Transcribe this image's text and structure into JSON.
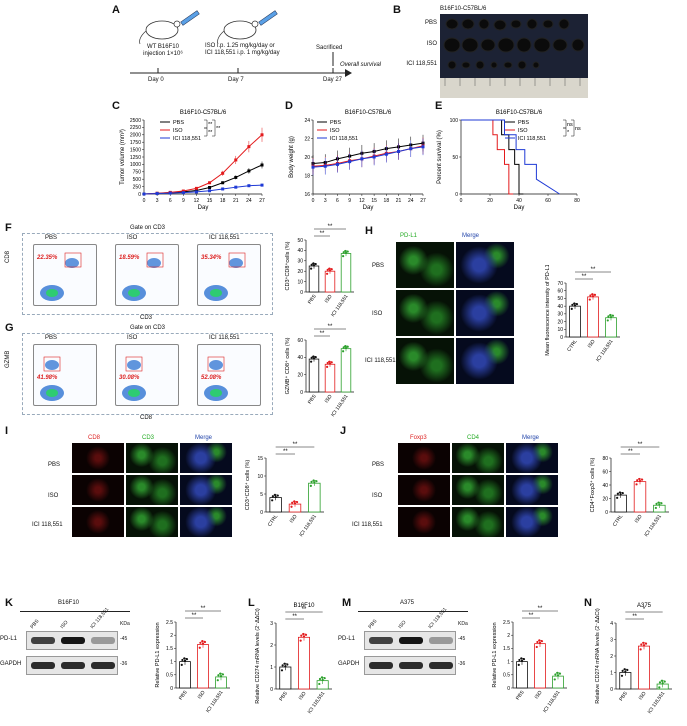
{
  "panels": {
    "A": "A",
    "B": "B",
    "C": "C",
    "D": "D",
    "E": "E",
    "F": "F",
    "G": "G",
    "H": "H",
    "I": "I",
    "J": "J",
    "K": "K",
    "L": "L",
    "M": "M",
    "N": "N"
  },
  "panelA": {
    "day0": "Day 0",
    "day7": "Day 7",
    "day27": "Day 27",
    "left_text_1": "WT B16F10",
    "left_text_2": "injection 1×10⁶",
    "mid_text_1": "ISO i.p. 1.25 mg/kg/day or",
    "mid_text_2": "ICI 118,551 i.p. 1 mg/kg/day",
    "sacrificed": "Sacrificed",
    "overall": "Overall survival"
  },
  "panelB": {
    "title": "B16F10-C57BL/6",
    "rows": [
      "PBS",
      "ISO",
      "ICI 118,551"
    ]
  },
  "chart_data": [
    {
      "id": "C",
      "type": "line",
      "title": "B16F10-C57BL/6",
      "xlabel": "Day",
      "ylabel": "Tumor volume (mm³)",
      "x": [
        0,
        3,
        6,
        9,
        12,
        15,
        18,
        21,
        24,
        27
      ],
      "ylim": [
        0,
        2500
      ],
      "yticks": [
        0,
        250,
        500,
        750,
        1000,
        1250,
        1500,
        1750,
        2000,
        2250,
        2500
      ],
      "series": [
        {
          "name": "PBS",
          "color": "#000000",
          "values": [
            0,
            20,
            45,
            70,
            120,
            220,
            380,
            560,
            780,
            980
          ]
        },
        {
          "name": "ISO",
          "color": "#e31a1c",
          "values": [
            0,
            25,
            55,
            100,
            190,
            380,
            700,
            1150,
            1600,
            2000
          ]
        },
        {
          "name": "ICI 118,551",
          "color": "#1f3ad6",
          "values": [
            0,
            15,
            30,
            45,
            70,
            110,
            170,
            230,
            280,
            300
          ]
        }
      ],
      "sig": [
        "**",
        "**",
        "**"
      ]
    },
    {
      "id": "D",
      "type": "line",
      "title": "B16F10-C57BL/6",
      "xlabel": "Day",
      "ylabel": "Body weight (g)",
      "x": [
        0,
        3,
        6,
        9,
        12,
        15,
        18,
        21,
        24,
        27
      ],
      "ylim": [
        16,
        24
      ],
      "yticks": [
        16,
        18,
        20,
        22,
        24
      ],
      "series": [
        {
          "name": "PBS",
          "color": "#000000",
          "values": [
            19.3,
            19.4,
            19.8,
            20.1,
            20.4,
            20.6,
            20.9,
            21.1,
            21.3,
            21.5
          ]
        },
        {
          "name": "ISO",
          "color": "#e31a1c",
          "values": [
            19.0,
            19.1,
            19.3,
            19.6,
            19.8,
            20.1,
            20.4,
            20.6,
            20.9,
            21.2
          ]
        },
        {
          "name": "ICI 118,551",
          "color": "#1f3ad6",
          "values": [
            18.9,
            19.0,
            19.2,
            19.5,
            19.8,
            20.0,
            20.3,
            20.6,
            20.9,
            21.1
          ]
        }
      ]
    },
    {
      "id": "E",
      "type": "line",
      "title": "B16F10-C57BL/6",
      "xlabel": "Day",
      "ylabel": "Percent survival (%)",
      "xlim": [
        0,
        80
      ],
      "xticks": [
        0,
        20,
        40,
        60,
        80
      ],
      "ylim": [
        0,
        100
      ],
      "yticks": [
        0,
        50,
        100
      ],
      "series": [
        {
          "name": "PBS",
          "color": "#000000",
          "x": [
            0,
            28,
            28,
            33,
            33,
            37,
            37,
            40,
            40,
            43
          ],
          "values": [
            100,
            100,
            80,
            80,
            60,
            60,
            40,
            40,
            0,
            0
          ]
        },
        {
          "name": "ISO",
          "color": "#e31a1c",
          "x": [
            0,
            22,
            22,
            25,
            25,
            30,
            30,
            33,
            33,
            36
          ],
          "values": [
            100,
            100,
            80,
            80,
            60,
            60,
            40,
            40,
            0,
            0
          ]
        },
        {
          "name": "ICI 118,551",
          "color": "#1f3ad6",
          "x": [
            0,
            30,
            30,
            38,
            38,
            44,
            44,
            52,
            52,
            68
          ],
          "values": [
            100,
            100,
            80,
            80,
            60,
            60,
            40,
            40,
            20,
            0
          ]
        }
      ],
      "sig": [
        "ns",
        "*",
        "ns"
      ]
    },
    {
      "id": "F",
      "type": "bar",
      "ylabel": "CD3⁺CD8⁺cells (%)",
      "categories": [
        "PBS",
        "ISO",
        "ICI 118,551"
      ],
      "values": [
        25,
        20,
        37
      ],
      "ylim": [
        0,
        50
      ],
      "yticks": [
        0,
        10,
        20,
        30,
        40,
        50
      ],
      "sig": [
        "**",
        "**"
      ]
    },
    {
      "id": "G",
      "type": "bar",
      "ylabel": "GZMB⁺ CD8⁺ cells (%)",
      "categories": [
        "PBS",
        "ISO",
        "ICI 118,551"
      ],
      "values": [
        38,
        32,
        50
      ],
      "ylim": [
        0,
        60
      ],
      "yticks": [
        0,
        20,
        40,
        60
      ],
      "sig": [
        "**",
        "**"
      ]
    },
    {
      "id": "H",
      "type": "bar",
      "ylabel": "Mean fluorescence intensity of PD-L1",
      "categories": [
        "CTRL",
        "ISO",
        "ICI 118,551"
      ],
      "values": [
        40,
        52,
        25
      ],
      "ylim": [
        0,
        70
      ],
      "yticks": [
        0,
        10,
        20,
        30,
        40,
        50,
        60,
        70
      ],
      "sig": [
        "**",
        "**"
      ]
    },
    {
      "id": "I",
      "type": "bar",
      "ylabel": "CD3⁺CD8⁺ cells (%)",
      "categories": [
        "CTRL",
        "ISO",
        "ICI 118,551"
      ],
      "values": [
        4,
        2.2,
        8
      ],
      "ylim": [
        0,
        15
      ],
      "yticks": [
        0,
        5,
        10,
        15
      ],
      "sig": [
        "**",
        "**"
      ]
    },
    {
      "id": "J",
      "type": "bar",
      "ylabel": "CD4⁺Foxp3⁺ cells (%)",
      "categories": [
        "CTRL",
        "ISO",
        "ICI 118,551"
      ],
      "values": [
        25,
        45,
        10
      ],
      "ylim": [
        0,
        80
      ],
      "yticks": [
        0,
        20,
        40,
        60,
        80
      ],
      "sig": [
        "**",
        "**"
      ]
    },
    {
      "id": "K",
      "type": "bar",
      "ylabel": "Relative PD-L1 expression",
      "categories": [
        "PBS",
        "ISO",
        "ICI 118,551"
      ],
      "values": [
        1.0,
        1.65,
        0.42
      ],
      "ylim": [
        0,
        2.5
      ],
      "yticks": [
        0,
        0.5,
        1.0,
        1.5,
        2.0,
        2.5
      ],
      "sig": [
        "**",
        "**"
      ]
    },
    {
      "id": "L",
      "type": "bar",
      "title": "B16F10",
      "ylabel": "Relative CD274 mRNA levels (2⁻ΔΔCt)",
      "categories": [
        "PBS",
        "ISO",
        "ICI 118,551"
      ],
      "values": [
        1.0,
        2.35,
        0.38
      ],
      "ylim": [
        0,
        3
      ],
      "yticks": [
        0,
        1,
        2,
        3
      ],
      "sig": [
        "**",
        "**"
      ]
    },
    {
      "id": "M",
      "type": "bar",
      "ylabel": "Relative PD-L1 expression",
      "categories": [
        "PBS",
        "ISO",
        "ICI 118,551"
      ],
      "values": [
        1.0,
        1.68,
        0.45
      ],
      "ylim": [
        0,
        2.5
      ],
      "yticks": [
        0,
        0.5,
        1.0,
        1.5,
        2.0,
        2.5
      ],
      "sig": [
        "**",
        "**"
      ]
    },
    {
      "id": "N",
      "type": "bar",
      "title": "A375",
      "ylabel": "Relative CD274 mRNA levels (2⁻ΔΔCt)",
      "categories": [
        "PBS",
        "ISO",
        "ICI 118,551"
      ],
      "values": [
        1.0,
        2.6,
        0.3
      ],
      "ylim": [
        0,
        4
      ],
      "yticks": [
        0,
        1,
        2,
        3,
        4
      ],
      "sig": [
        "**",
        "*"
      ]
    }
  ],
  "flow": {
    "F": {
      "gate": "Gate on CD3",
      "xaxis": "CD3",
      "yaxis": "CD8",
      "groups": [
        "PBS",
        "ISO",
        "ICI 118,551"
      ],
      "percents": [
        "22.35%",
        "18.59%",
        "35.34%"
      ]
    },
    "G": {
      "gate": "Gate on CD3",
      "xaxis": "CD8",
      "yaxis": "GZMB",
      "groups": [
        "PBS",
        "ISO",
        "ICI 118,551"
      ],
      "percents": [
        "41.98%",
        "30.08%",
        "52.08%"
      ]
    }
  },
  "micro": {
    "H": {
      "cols": [
        "PD-L1",
        "Merge"
      ],
      "rows": [
        "PBS",
        "ISO",
        "ICI 118,551"
      ]
    },
    "I": {
      "cols": [
        "CD8",
        "CD3",
        "Merge"
      ],
      "rows": [
        "PBS",
        "ISO",
        "ICI 118,551"
      ]
    },
    "J": {
      "cols": [
        "Foxp3",
        "CD4",
        "Merge"
      ],
      "rows": [
        "PBS",
        "ISO",
        "ICI 118,551"
      ]
    }
  },
  "wb": {
    "K": {
      "cell": "B16F10",
      "lanes": [
        "PBS",
        "ISO",
        "ICI 118,551"
      ],
      "kda": "KDa",
      "rows": [
        {
          "label": "PD-L1",
          "kda": "45"
        },
        {
          "label": "GAPDH",
          "kda": "36"
        }
      ]
    },
    "M": {
      "cell": "A375",
      "lanes": [
        "PBS",
        "ISO",
        "ICI 118,551"
      ],
      "kda": "KDa",
      "rows": [
        {
          "label": "PD-L1",
          "kda": "45"
        },
        {
          "label": "GAPDH",
          "kda": "36"
        }
      ]
    }
  }
}
